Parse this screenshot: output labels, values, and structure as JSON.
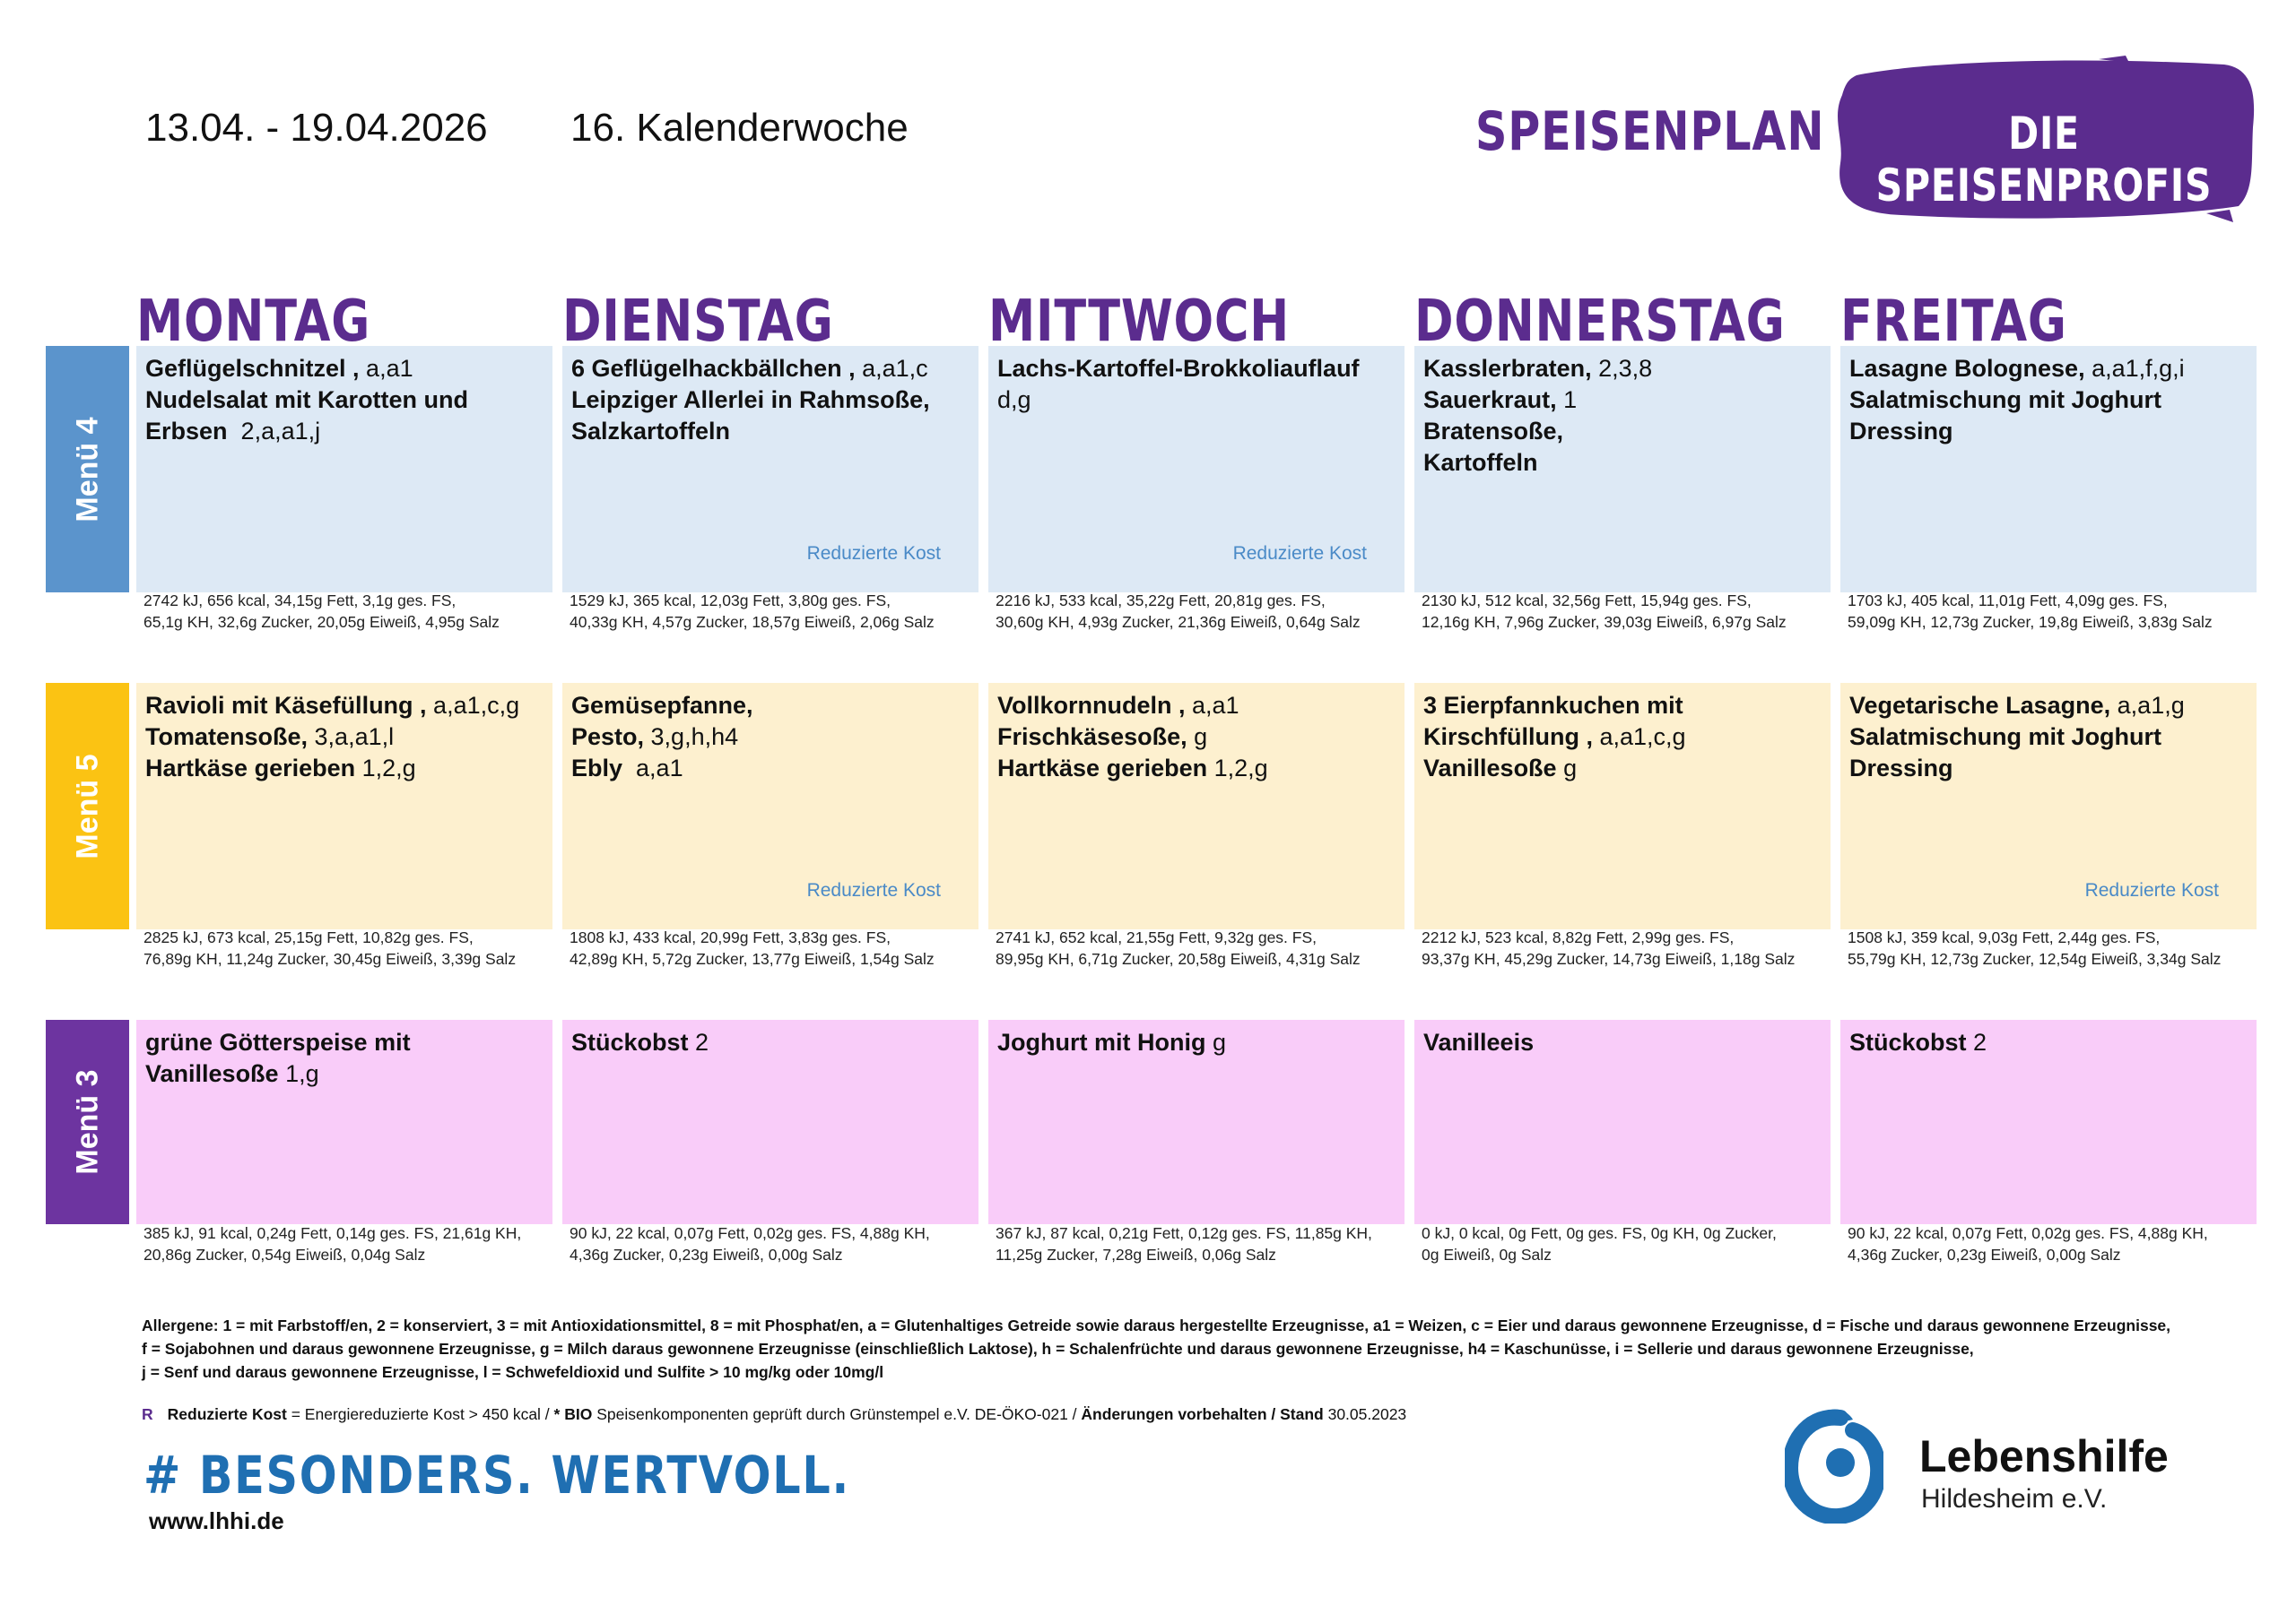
{
  "header": {
    "date_range": "13.04. - 19.04.2026",
    "calendar_week": "16. Kalenderwoche",
    "plan_title": "SPEISENPLAN",
    "brand": "DIE SPEISENPROFIS"
  },
  "colors": {
    "purple": "#5b2c8e",
    "menu4_label": "#5b94cc",
    "menu4_bg": "#dde9f5",
    "menu5_label": "#fbc313",
    "menu5_bg": "#fdf0cf",
    "menu3_label": "#6d34a0",
    "menu3_bg": "#f9ccf9",
    "reduced_text": "#4a8ac7",
    "slogan": "#1f6fb2"
  },
  "days": [
    "MONTAG",
    "DIENSTAG",
    "MITTWOCH",
    "DONNERSTAG",
    "FREITAG"
  ],
  "menus": [
    {
      "label": "Menü 4",
      "items": [
        {
          "lines": [
            {
              "b": "Geflügelschnitzel ,",
              "n": " a,a1"
            },
            {
              "b": "Nudelsalat mit Karotten und",
              "n": ""
            },
            {
              "b": "Erbsen",
              "n": "  2,a,a1,j"
            }
          ],
          "reduced": "",
          "nutrition": [
            "2742 kJ, 656 kcal, 34,15g Fett, 3,1g ges. FS,",
            "65,1g KH, 32,6g Zucker, 20,05g Eiweiß, 4,95g Salz"
          ]
        },
        {
          "lines": [
            {
              "b": "6 Geflügelhackbällchen ,",
              "n": " a,a1,c"
            },
            {
              "b": "Leipziger Allerlei in Rahmsoße,",
              "n": ""
            },
            {
              "b": "Salzkartoffeln",
              "n": ""
            }
          ],
          "reduced": "Reduzierte Kost",
          "nutrition": [
            "1529 kJ, 365 kcal, 12,03g Fett, 3,80g ges. FS,",
            "40,33g KH, 4,57g Zucker, 18,57g Eiweiß, 2,06g Salz"
          ]
        },
        {
          "lines": [
            {
              "b": "Lachs-Kartoffel-Brokkoliauflauf",
              "n": ""
            },
            {
              "b": "",
              "n": "d,g"
            }
          ],
          "reduced": "Reduzierte Kost",
          "nutrition": [
            "2216 kJ, 533 kcal, 35,22g Fett, 20,81g ges. FS,",
            "30,60g KH, 4,93g Zucker, 21,36g Eiweiß, 0,64g Salz"
          ]
        },
        {
          "lines": [
            {
              "b": "Kasslerbraten,",
              "n": " 2,3,8"
            },
            {
              "b": "Sauerkraut,",
              "n": " 1"
            },
            {
              "b": "Bratensoße,",
              "n": ""
            },
            {
              "b": "Kartoffeln",
              "n": ""
            }
          ],
          "reduced": "",
          "nutrition": [
            "2130 kJ, 512 kcal, 32,56g Fett, 15,94g ges. FS,",
            "12,16g KH, 7,96g Zucker, 39,03g Eiweiß, 6,97g Salz"
          ]
        },
        {
          "lines": [
            {
              "b": "Lasagne Bolognese,",
              "n": " a,a1,f,g,i"
            },
            {
              "b": "Salatmischung mit Joghurt",
              "n": ""
            },
            {
              "b": "Dressing",
              "n": ""
            }
          ],
          "reduced": "",
          "nutrition": [
            "1703 kJ, 405 kcal, 11,01g Fett, 4,09g ges. FS,",
            "59,09g KH, 12,73g Zucker, 19,8g Eiweiß, 3,83g Salz"
          ]
        }
      ]
    },
    {
      "label": "Menü 5",
      "items": [
        {
          "lines": [
            {
              "b": "Ravioli mit Käsefüllung ,",
              "n": " a,a1,c,g"
            },
            {
              "b": "Tomatensoße,",
              "n": " 3,a,a1,l"
            },
            {
              "b": "Hartkäse gerieben",
              "n": " 1,2,g"
            }
          ],
          "reduced": "",
          "nutrition": [
            "2825 kJ, 673 kcal, 25,15g Fett, 10,82g ges. FS,",
            "76,89g KH, 11,24g Zucker, 30,45g Eiweiß, 3,39g Salz"
          ]
        },
        {
          "lines": [
            {
              "b": "Gemüsepfanne,",
              "n": ""
            },
            {
              "b": "Pesto,",
              "n": " 3,g,h,h4"
            },
            {
              "b": "Ebly",
              "n": "  a,a1"
            }
          ],
          "reduced": "Reduzierte Kost",
          "nutrition": [
            "1808 kJ, 433 kcal, 20,99g Fett, 3,83g ges. FS,",
            "42,89g KH, 5,72g Zucker, 13,77g Eiweiß, 1,54g Salz"
          ]
        },
        {
          "lines": [
            {
              "b": "Vollkornnudeln ,",
              "n": " a,a1"
            },
            {
              "b": "Frischkäsesoße,",
              "n": " g"
            },
            {
              "b": "Hartkäse gerieben",
              "n": " 1,2,g"
            }
          ],
          "reduced": "",
          "nutrition": [
            "2741 kJ, 652 kcal, 21,55g Fett, 9,32g ges. FS,",
            "89,95g KH, 6,71g Zucker, 20,58g Eiweiß, 4,31g Salz"
          ]
        },
        {
          "lines": [
            {
              "b": "3 Eierpfannkuchen mit",
              "n": ""
            },
            {
              "b": "Kirschfüllung ,",
              "n": " a,a1,c,g"
            },
            {
              "b": "Vanillesoße",
              "n": " g"
            }
          ],
          "reduced": "",
          "nutrition": [
            "2212 kJ, 523 kcal, 8,82g Fett, 2,99g ges. FS,",
            "93,37g KH, 45,29g Zucker, 14,73g Eiweiß, 1,18g Salz"
          ]
        },
        {
          "lines": [
            {
              "b": "Vegetarische Lasagne,",
              "n": " a,a1,g"
            },
            {
              "b": "Salatmischung mit Joghurt",
              "n": ""
            },
            {
              "b": "Dressing",
              "n": ""
            }
          ],
          "reduced": "Reduzierte Kost",
          "nutrition": [
            "1508 kJ, 359 kcal, 9,03g Fett, 2,44g ges. FS,",
            "55,79g KH, 12,73g Zucker, 12,54g Eiweiß, 3,34g Salz"
          ]
        }
      ]
    },
    {
      "label": "Menü 3",
      "items": [
        {
          "lines": [
            {
              "b": "grüne Götterspeise mit",
              "n": ""
            },
            {
              "b": "Vanillesoße",
              "n": " 1,g"
            }
          ],
          "reduced": "",
          "nutrition": [
            "385 kJ, 91 kcal, 0,24g Fett, 0,14g ges. FS, 21,61g KH,",
            "20,86g Zucker, 0,54g Eiweiß, 0,04g Salz"
          ]
        },
        {
          "lines": [
            {
              "b": "Stückobst",
              "n": " 2"
            }
          ],
          "reduced": "",
          "nutrition": [
            "90 kJ, 22 kcal, 0,07g Fett, 0,02g ges. FS, 4,88g KH,",
            "4,36g Zucker, 0,23g Eiweiß, 0,00g Salz"
          ]
        },
        {
          "lines": [
            {
              "b": "Joghurt mit Honig",
              "n": " g"
            }
          ],
          "reduced": "",
          "nutrition": [
            "367 kJ, 87 kcal, 0,21g Fett, 0,12g ges. FS, 11,85g KH,",
            "11,25g Zucker, 7,28g Eiweiß, 0,06g Salz"
          ]
        },
        {
          "lines": [
            {
              "b": "Vanilleeis",
              "n": ""
            }
          ],
          "reduced": "",
          "nutrition": [
            "0 kJ, 0 kcal, 0g Fett, 0g ges. FS, 0g KH, 0g Zucker,",
            "0g Eiweiß, 0g Salz"
          ]
        },
        {
          "lines": [
            {
              "b": "Stückobst",
              "n": " 2"
            }
          ],
          "reduced": "",
          "nutrition": [
            "90 kJ, 22 kcal, 0,07g Fett, 0,02g ges. FS, 4,88g KH,",
            "4,36g Zucker, 0,23g Eiweiß, 0,00g Salz"
          ]
        }
      ]
    }
  ],
  "allergens": [
    "Allergene: 1 = mit Farbstoff/en, 2 = konserviert, 3 = mit Antioxidationsmittel, 8 = mit Phosphat/en, a = Glutenhaltiges Getreide sowie daraus hergestellte Erzeugnisse, a1 = Weizen, c = Eier und daraus gewonnene Erzeugnisse, d = Fische und daraus gewonnene Erzeugnisse,",
    "f = Sojabohnen und daraus gewonnene Erzeugnisse, g = Milch daraus gewonnene Erzeugnisse (einschließlich Laktose), h = Schalenfrüchte und daraus gewonnene Erzeugnisse, h4 = Kaschunüsse, i = Sellerie und daraus gewonnene Erzeugnisse,",
    "j = Senf und daraus gewonnene Erzeugnisse, l = Schwefeldioxid und Sulfite > 10 mg/kg oder 10mg/l"
  ],
  "legend": {
    "r": "R",
    "reduced_label": "Reduzierte Kost",
    "reduced_text": " = Energiereduzierte Kost > 450 kcal / ",
    "bio_label": "* BIO",
    "bio_text": " Speisenkomponenten geprüft durch Grünstempel e.V. DE-ÖKO-021 / ",
    "changes_label": "Änderungen vorbehalten / Stand",
    "stand_date": " 30.05.2023"
  },
  "footer": {
    "slogan": "# BESONDERS. WERTVOLL.",
    "website": "www.lhhi.de",
    "org_name": "Lebenshilfe",
    "org_city": "Hildesheim e.V."
  }
}
